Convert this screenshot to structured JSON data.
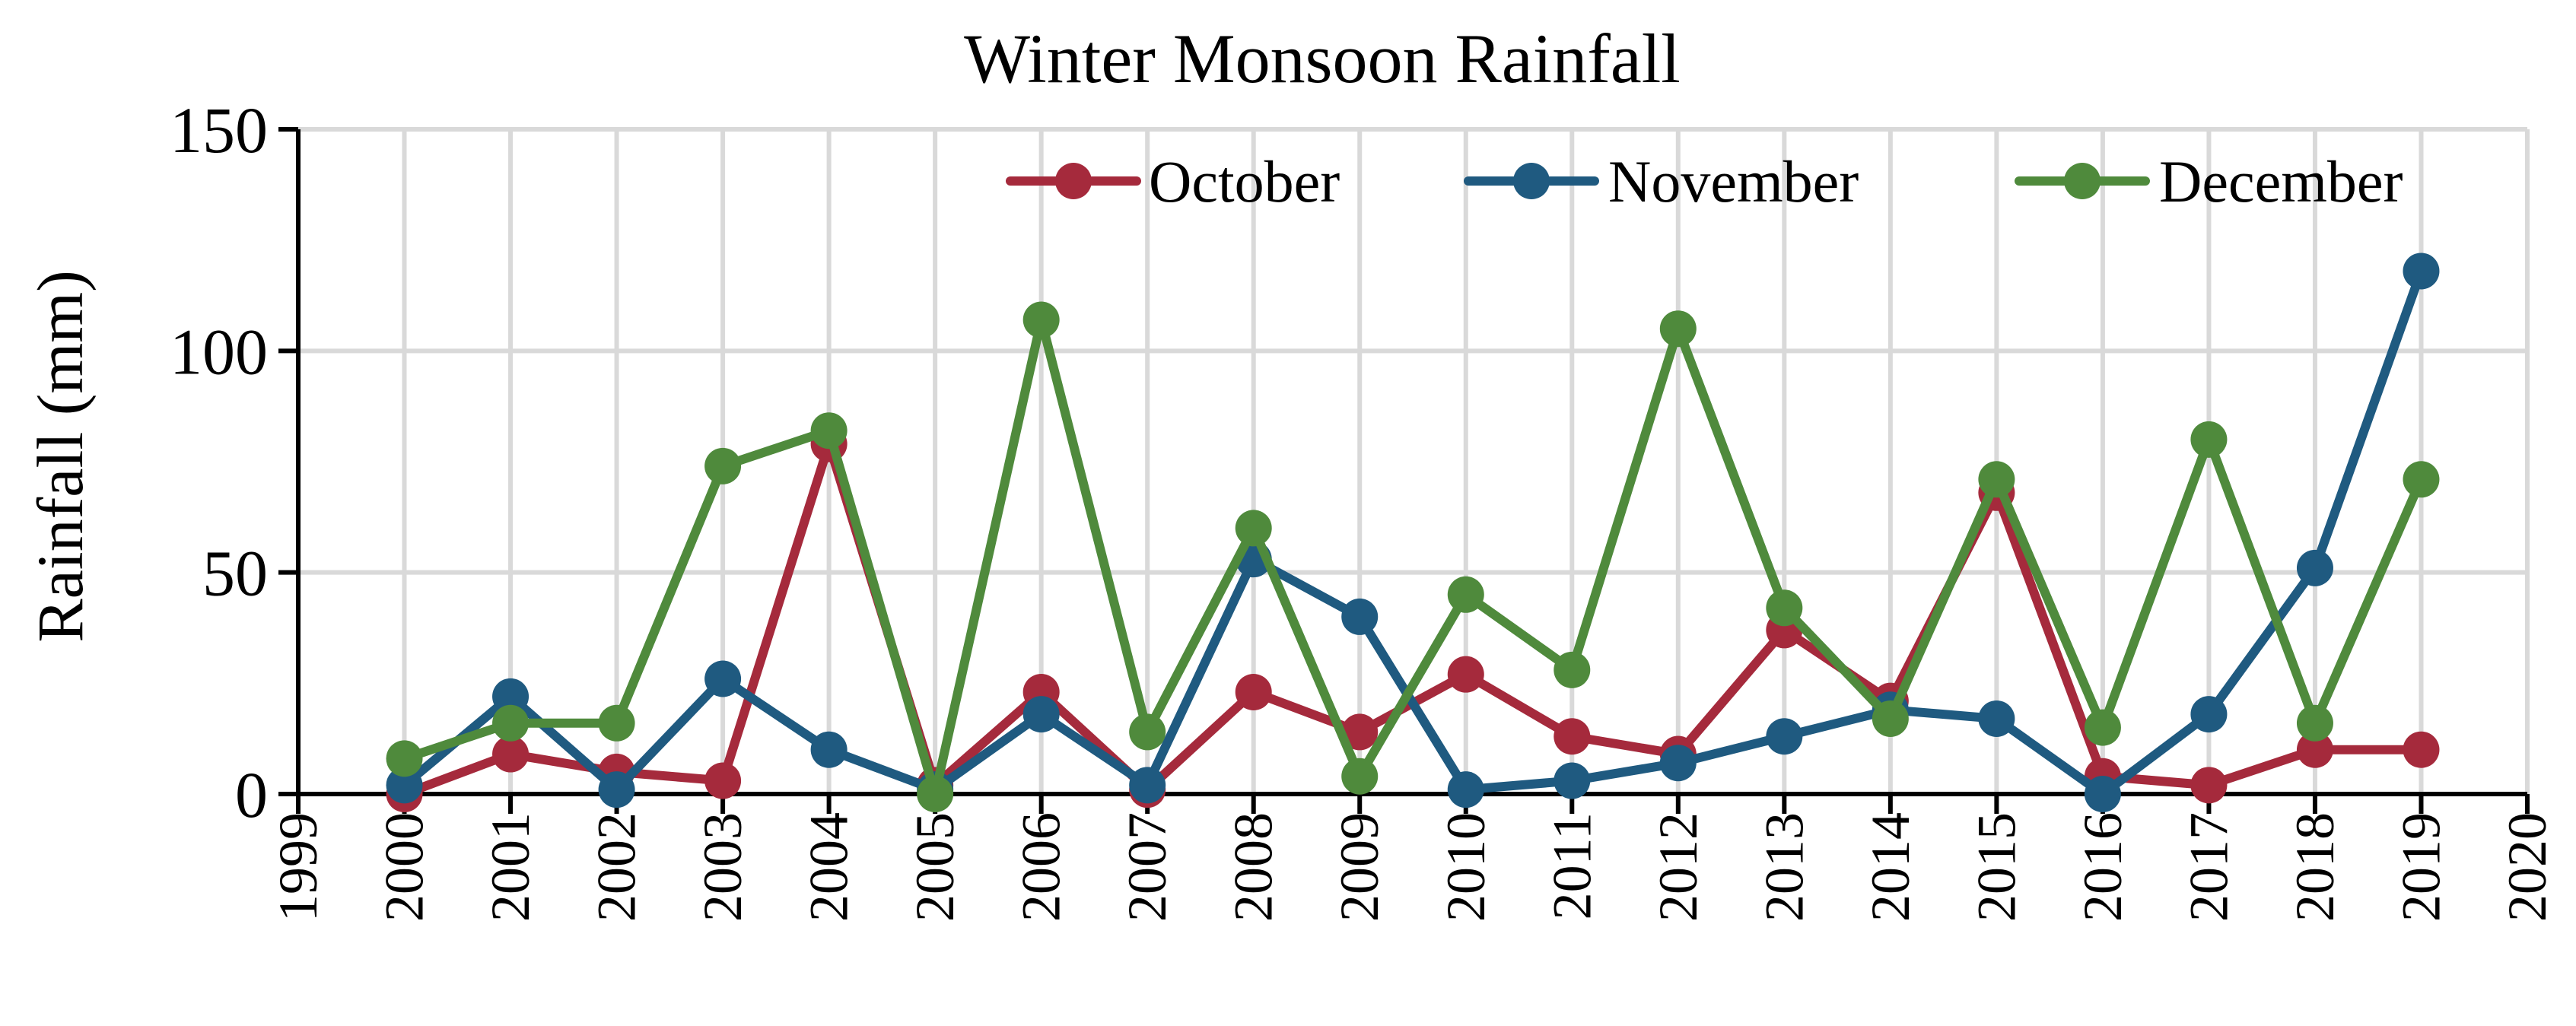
{
  "chart_data": {
    "type": "line",
    "title": "Winter Monsoon Rainfall",
    "xlabel": "",
    "ylabel": "Rainfall (mm)",
    "xlim": [
      1999,
      2020
    ],
    "ylim": [
      0,
      150
    ],
    "x_ticks": [
      1999,
      2000,
      2001,
      2002,
      2003,
      2004,
      2005,
      2006,
      2007,
      2008,
      2009,
      2010,
      2011,
      2012,
      2013,
      2014,
      2015,
      2016,
      2017,
      2018,
      2019,
      2020
    ],
    "y_ticks": [
      0,
      50,
      100,
      150
    ],
    "grid": true,
    "legend_position": "top-right",
    "x": [
      2000,
      2001,
      2002,
      2003,
      2004,
      2005,
      2006,
      2007,
      2008,
      2009,
      2010,
      2011,
      2012,
      2013,
      2014,
      2015,
      2016,
      2017,
      2018,
      2019
    ],
    "series": [
      {
        "name": "October",
        "color": "#a52a3c",
        "values": [
          0,
          9,
          5,
          3,
          79,
          2,
          23,
          1,
          23,
          14,
          27,
          13,
          9,
          37,
          21,
          68,
          4,
          2,
          10,
          10
        ]
      },
      {
        "name": "November",
        "color": "#1f5a80",
        "values": [
          2,
          22,
          1,
          26,
          10,
          1,
          18,
          2,
          53,
          40,
          1,
          3,
          7,
          13,
          19,
          17,
          0,
          18,
          51,
          118
        ]
      },
      {
        "name": "December",
        "color": "#4f8a3c",
        "values": [
          8,
          16,
          16,
          74,
          82,
          0,
          107,
          14,
          60,
          4,
          45,
          28,
          105,
          42,
          17,
          71,
          15,
          80,
          16,
          71
        ]
      }
    ]
  }
}
